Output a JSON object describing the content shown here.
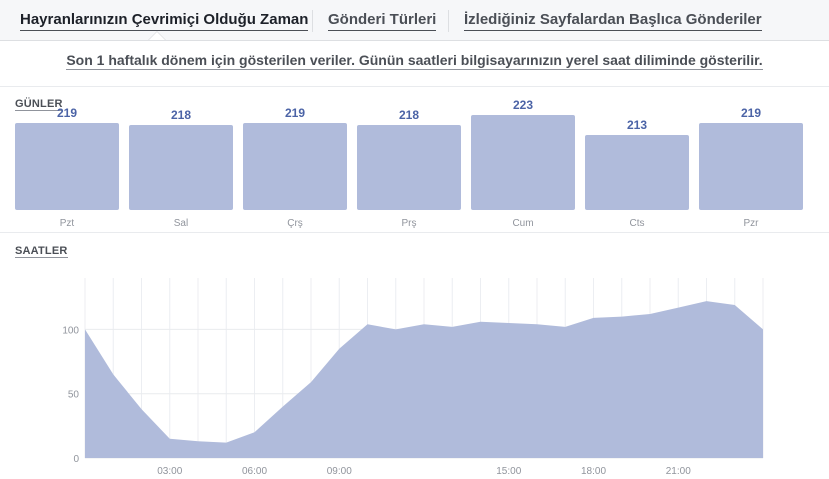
{
  "tabs": [
    {
      "label": "Hayranlarınızın Çevrimiçi Olduğu Zaman",
      "active": true
    },
    {
      "label": "Gönderi Türleri",
      "active": false
    },
    {
      "label": "İzlediğiniz Sayfalardan Başlıca Gönderiler",
      "active": false
    }
  ],
  "notice": "Son 1 haftalık dönem için gösterilen veriler. Günün saatleri bilgisayarınızın yerel saat diliminde gösterilir.",
  "colors": {
    "bar_fill": "#b0bbdb",
    "value_text": "#4b63a6",
    "area_fill": "#b0bbdb"
  },
  "chart_data": [
    {
      "type": "bar",
      "title": "GÜNLER",
      "categories": [
        "Pzt",
        "Sal",
        "Çrş",
        "Prş",
        "Cum",
        "Cts",
        "Pzr"
      ],
      "values": [
        219,
        218,
        219,
        218,
        223,
        213,
        219
      ]
    },
    {
      "type": "area",
      "title": "SAATLER",
      "x": [
        0,
        1,
        2,
        3,
        4,
        5,
        6,
        7,
        8,
        9,
        10,
        11,
        12,
        13,
        14,
        15,
        16,
        17,
        18,
        19,
        20,
        21,
        22,
        23,
        24
      ],
      "values": [
        100,
        65,
        38,
        15,
        13,
        12,
        20,
        40,
        59,
        85,
        104,
        100,
        104,
        102,
        106,
        105,
        104,
        102,
        109,
        110,
        112,
        117,
        122,
        119,
        100
      ],
      "ylim": [
        0,
        140
      ],
      "yticks": [
        0,
        50,
        100
      ],
      "xtick_positions": [
        3,
        6,
        9,
        15,
        18,
        21
      ],
      "xtick_labels": [
        "03:00",
        "06:00",
        "09:00",
        "15:00",
        "18:00",
        "21:00"
      ],
      "grid": true
    }
  ]
}
